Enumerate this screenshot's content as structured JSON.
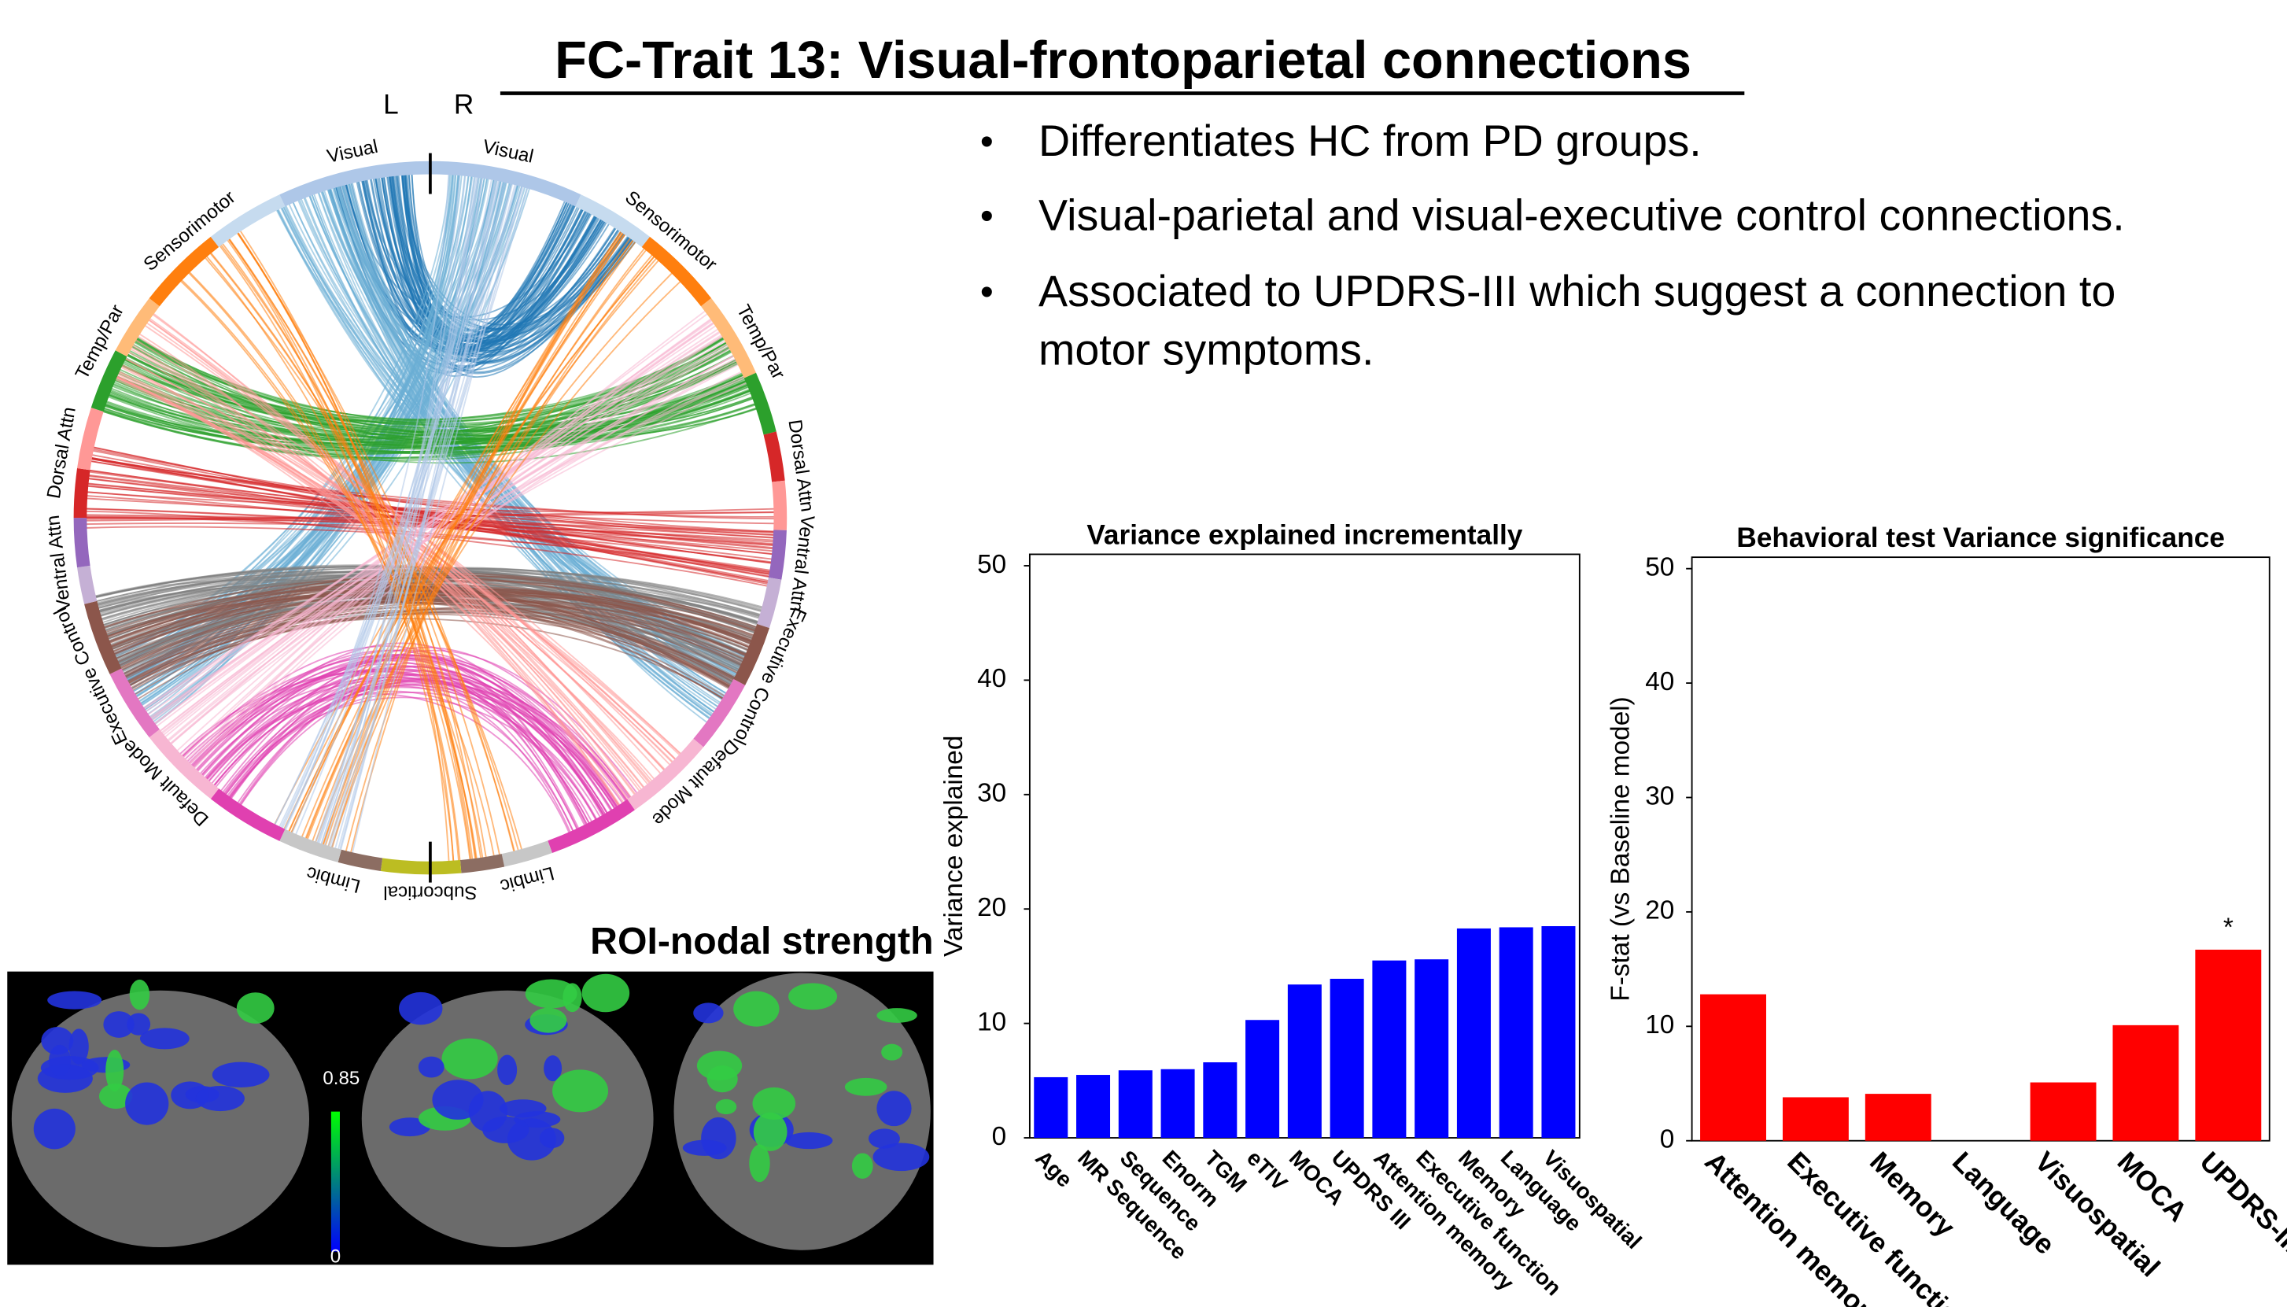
{
  "title": "FC-Trait 13:  Visual-frontoparietal connections",
  "bullets": [
    [
      "Differentiates HC  from PD groups."
    ],
    [
      "Visual-parietal and visual-executive control connections."
    ],
    [
      "Associated to UPDRS-III which suggest a connection to",
      "motor symptoms."
    ]
  ],
  "chord": {
    "hemispheres": [
      "L",
      "R"
    ],
    "labels": [
      "Visual",
      "Sensorimotor",
      "Temp/Par",
      "Dorsal Attn",
      "Ventral Attn",
      "Executive Control",
      "Default Mode",
      "Limbic",
      "Subcortical",
      "Limbic",
      "Default Mode",
      "Executive Control",
      "Ventral Attn",
      "Dorsal Attn",
      "Temp/Par",
      "Sensorimotor",
      "Visual"
    ]
  },
  "brain_panel": {
    "title": "ROI-nodal strength",
    "colorbar_max": "0.85",
    "colorbar_min": "0"
  },
  "chart_data": [
    {
      "type": "bar",
      "title": "Variance explained incrementally",
      "y_label": "Variance explained",
      "categories": [
        "Age",
        "MR Sequence",
        "Sequence",
        "Enorm",
        "TGM",
        "eTIV",
        "MOCA",
        "UPDRS III",
        "Attention memory",
        "Executive function",
        "Memory",
        "Language",
        "Visuospatial"
      ],
      "values": [
        5.3,
        5.5,
        5.9,
        6.0,
        6.6,
        10.3,
        13.4,
        13.9,
        15.5,
        15.6,
        18.3,
        18.4,
        18.5
      ],
      "color": "#0000ff",
      "ylim": [
        0,
        51
      ],
      "yticks": [
        0,
        10,
        20,
        30,
        40,
        50
      ]
    },
    {
      "type": "bar",
      "title": "Behavioral test Variance significance",
      "y_label": "F-stat (vs Baseline model)",
      "categories": [
        "Attention memory",
        "Executive function",
        "Memory",
        "Language",
        "Visuospatial",
        "MOCA",
        "UPDRS-III"
      ],
      "values": [
        12.8,
        3.8,
        4.1,
        0,
        5.1,
        10.1,
        16.7
      ],
      "color": "#ff0000",
      "ylim": [
        0,
        51
      ],
      "yticks": [
        0,
        10,
        20,
        30,
        40,
        50
      ],
      "annotations": [
        {
          "text": "*",
          "category": "UPDRS-III"
        }
      ]
    }
  ]
}
